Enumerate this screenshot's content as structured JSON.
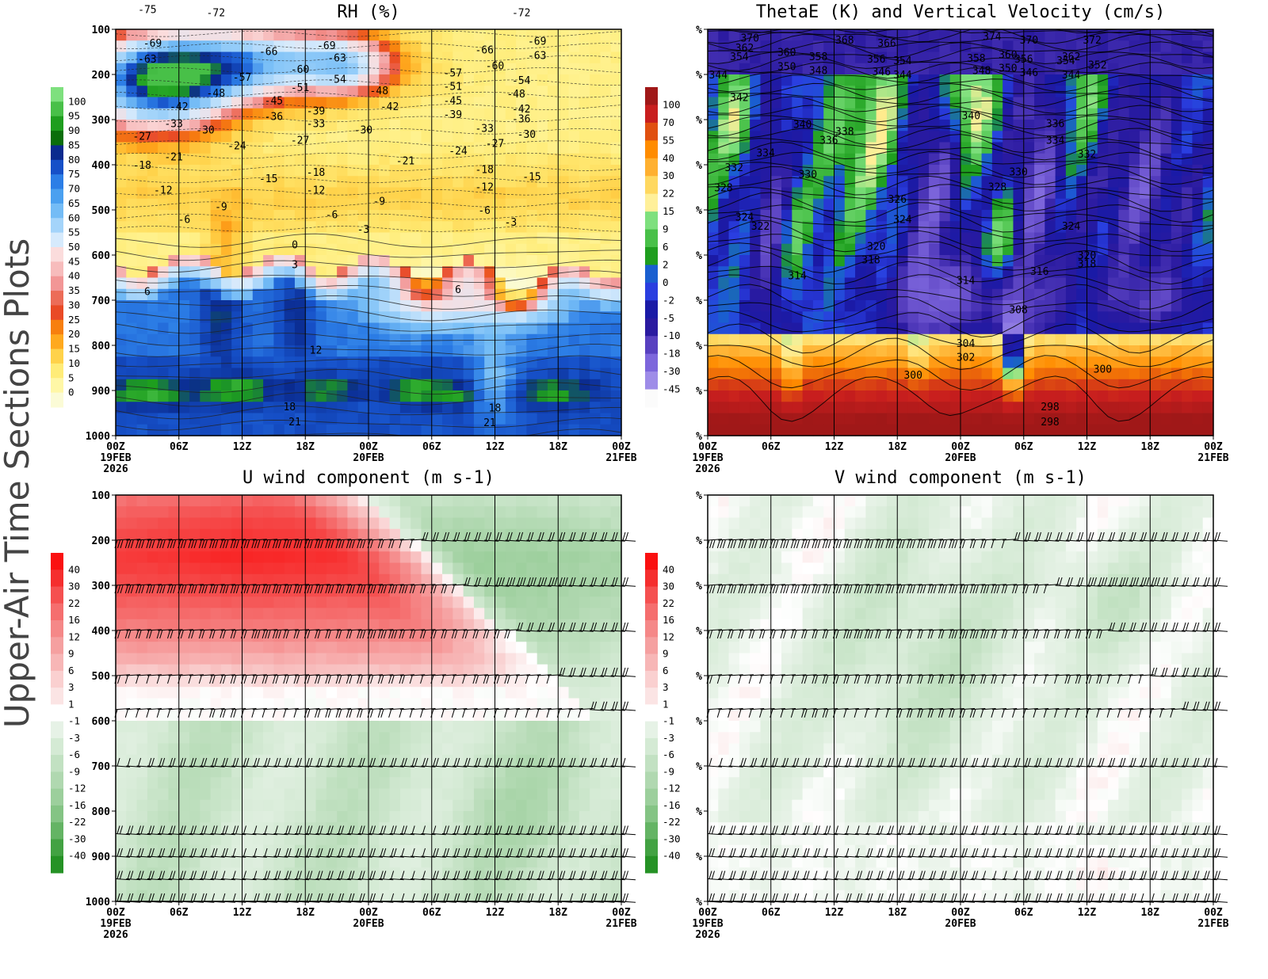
{
  "figure": {
    "side_title": "Upper-Air Time Sections Plots",
    "time_ticks": [
      "00Z",
      "06Z",
      "12Z",
      "18Z",
      "00Z",
      "06Z",
      "12Z",
      "18Z",
      "00Z"
    ],
    "date_ticks": [
      {
        "label": "19FEB",
        "year": "2026",
        "index": 0
      },
      {
        "label": "20FEB",
        "year": "",
        "index": 4
      },
      {
        "label": "21FEB",
        "year": "",
        "index": 8
      }
    ]
  },
  "chart_data": [
    {
      "id": "rh",
      "type": "heatmap",
      "title": "RH (%)",
      "y_tick_labels": [
        "100",
        "200",
        "300",
        "400",
        "500",
        "600",
        "700",
        "800",
        "900",
        "1000"
      ],
      "y_ticks": [
        100,
        200,
        300,
        400,
        500,
        600,
        700,
        800,
        900,
        1000
      ],
      "ylim": [
        100,
        1000
      ],
      "x_hours": [
        0,
        48
      ],
      "colorbar": {
        "labels": [
          "100",
          "95",
          "90",
          "85",
          "80",
          "75",
          "70",
          "65",
          "60",
          "55",
          "50",
          "45",
          "40",
          "35",
          "30",
          "25",
          "20",
          "15",
          "10",
          "5",
          "0"
        ],
        "colors": [
          "#7ee07e",
          "#48c048",
          "#1e9e1e",
          "#0a6e0a",
          "#0a2a8e",
          "#1650c8",
          "#2c7ee6",
          "#4aa0f0",
          "#74bcf6",
          "#a4d4fa",
          "#d6eafc",
          "#fbdcdc",
          "#f7bcbc",
          "#f29696",
          "#ec6c58",
          "#e94a26",
          "#f77f0e",
          "#ffa91e",
          "#ffd24a",
          "#ffec78",
          "#fff7a6",
          "#fbfbd6"
        ]
      },
      "contour_labels": [
        {
          "t": 3.0,
          "p": 55,
          "v": "-75"
        },
        {
          "t": 9.5,
          "p": 62,
          "v": "-72"
        },
        {
          "t": 38.5,
          "p": 62,
          "v": "-72"
        },
        {
          "t": 3.5,
          "p": 130,
          "v": "-69"
        },
        {
          "t": 20.0,
          "p": 135,
          "v": "-69"
        },
        {
          "t": 40.0,
          "p": 125,
          "v": "-69"
        },
        {
          "t": 3.0,
          "p": 165,
          "v": "-63"
        },
        {
          "t": 21.0,
          "p": 162,
          "v": "-63"
        },
        {
          "t": 40.0,
          "p": 157,
          "v": "-63"
        },
        {
          "t": 14.5,
          "p": 148,
          "v": "-66"
        },
        {
          "t": 35.0,
          "p": 145,
          "v": "-66"
        },
        {
          "t": 17.5,
          "p": 188,
          "v": "-60"
        },
        {
          "t": 36.0,
          "p": 180,
          "v": "-60"
        },
        {
          "t": 12.0,
          "p": 205,
          "v": "-57"
        },
        {
          "t": 32.0,
          "p": 196,
          "v": "-57"
        },
        {
          "t": 21.0,
          "p": 210,
          "v": "-54"
        },
        {
          "t": 38.5,
          "p": 212,
          "v": "-54"
        },
        {
          "t": 17.5,
          "p": 228,
          "v": "-51"
        },
        {
          "t": 32.0,
          "p": 225,
          "v": "-51"
        },
        {
          "t": 9.5,
          "p": 240,
          "v": "-48"
        },
        {
          "t": 25.0,
          "p": 235,
          "v": "-48"
        },
        {
          "t": 38.0,
          "p": 242,
          "v": "-48"
        },
        {
          "t": 15.0,
          "p": 257,
          "v": "-45"
        },
        {
          "t": 32.0,
          "p": 257,
          "v": "-45"
        },
        {
          "t": 6.0,
          "p": 270,
          "v": "-42"
        },
        {
          "t": 26.0,
          "p": 270,
          "v": "-42"
        },
        {
          "t": 38.5,
          "p": 275,
          "v": "-42"
        },
        {
          "t": 19.0,
          "p": 280,
          "v": "-39"
        },
        {
          "t": 32.0,
          "p": 288,
          "v": "-39"
        },
        {
          "t": 15.0,
          "p": 292,
          "v": "-36"
        },
        {
          "t": 38.5,
          "p": 297,
          "v": "-36"
        },
        {
          "t": 5.5,
          "p": 308,
          "v": "-33"
        },
        {
          "t": 19.0,
          "p": 308,
          "v": "-33"
        },
        {
          "t": 35.0,
          "p": 318,
          "v": "-33"
        },
        {
          "t": 8.5,
          "p": 322,
          "v": "-30"
        },
        {
          "t": 23.5,
          "p": 322,
          "v": "-30"
        },
        {
          "t": 39.0,
          "p": 332,
          "v": "-30"
        },
        {
          "t": 2.5,
          "p": 336,
          "v": "-27"
        },
        {
          "t": 17.5,
          "p": 345,
          "v": "-27"
        },
        {
          "t": 36.0,
          "p": 352,
          "v": "-27"
        },
        {
          "t": 11.5,
          "p": 357,
          "v": "-24"
        },
        {
          "t": 32.5,
          "p": 368,
          "v": "-24"
        },
        {
          "t": 5.5,
          "p": 382,
          "v": "-21"
        },
        {
          "t": 27.5,
          "p": 390,
          "v": "-21"
        },
        {
          "t": 2.5,
          "p": 400,
          "v": "-18"
        },
        {
          "t": 19.0,
          "p": 416,
          "v": "-18"
        },
        {
          "t": 35.0,
          "p": 410,
          "v": "-18"
        },
        {
          "t": 14.5,
          "p": 430,
          "v": "-15"
        },
        {
          "t": 39.5,
          "p": 425,
          "v": "-15"
        },
        {
          "t": 4.5,
          "p": 455,
          "v": "-12"
        },
        {
          "t": 19.0,
          "p": 455,
          "v": "-12"
        },
        {
          "t": 35.0,
          "p": 448,
          "v": "-12"
        },
        {
          "t": 10.0,
          "p": 492,
          "v": "-9"
        },
        {
          "t": 25.0,
          "p": 480,
          "v": "-9"
        },
        {
          "t": 6.5,
          "p": 520,
          "v": "-6"
        },
        {
          "t": 20.5,
          "p": 510,
          "v": "-6"
        },
        {
          "t": 35.0,
          "p": 500,
          "v": "-6"
        },
        {
          "t": 23.5,
          "p": 542,
          "v": "-3"
        },
        {
          "t": 37.5,
          "p": 526,
          "v": "-3"
        },
        {
          "t": 17.0,
          "p": 576,
          "v": "0"
        },
        {
          "t": 17.0,
          "p": 620,
          "v": "3"
        },
        {
          "t": 3.0,
          "p": 680,
          "v": "6"
        },
        {
          "t": 32.5,
          "p": 675,
          "v": "6"
        },
        {
          "t": 19.0,
          "p": 810,
          "v": "12"
        },
        {
          "t": 16.5,
          "p": 935,
          "v": "18"
        },
        {
          "t": 36.0,
          "p": 938,
          "v": "18"
        },
        {
          "t": 17.0,
          "p": 968,
          "v": "21"
        },
        {
          "t": 35.5,
          "p": 970,
          "v": "21"
        }
      ]
    },
    {
      "id": "thetae",
      "type": "heatmap",
      "title": "ThetaE (K) and Vertical Velocity (cm/s)",
      "y_tick_labels": [
        "%",
        "%",
        "%",
        "%",
        "%",
        "%",
        "%",
        "%",
        "%",
        "%"
      ],
      "y_ticks": [
        100,
        200,
        300,
        400,
        500,
        600,
        700,
        800,
        900,
        1000
      ],
      "ylim": [
        100,
        1000
      ],
      "x_hours": [
        0,
        48
      ],
      "colorbar": {
        "labels": [
          "100",
          "70",
          "55",
          "40",
          "30",
          "22",
          "15",
          "9",
          "6",
          "2",
          "0",
          "-2",
          "-5",
          "-10",
          "-18",
          "-30",
          "-45"
        ],
        "colors": [
          "#a01818",
          "#c81e1e",
          "#e05010",
          "#ff8c00",
          "#ffb030",
          "#ffd860",
          "#fff09a",
          "#7ee07e",
          "#48c048",
          "#1e9e1e",
          "#1a5fd0",
          "#2a3ee0",
          "#1a1aa6",
          "#2a1aa0",
          "#5840c0",
          "#7d66dc",
          "#9e8ce8",
          "#fbfbfb"
        ]
      },
      "contour_labels": [
        {
          "t": 4.0,
          "p": 118,
          "v": "370"
        },
        {
          "t": 13.0,
          "p": 123,
          "v": "368"
        },
        {
          "t": 17.0,
          "p": 130,
          "v": "366"
        },
        {
          "t": 27.0,
          "p": 115,
          "v": "374"
        },
        {
          "t": 30.5,
          "p": 123,
          "v": "370"
        },
        {
          "t": 36.5,
          "p": 123,
          "v": "372"
        },
        {
          "t": 3.5,
          "p": 140,
          "v": "362"
        },
        {
          "t": 7.5,
          "p": 150,
          "v": "360"
        },
        {
          "t": 10.5,
          "p": 160,
          "v": "358"
        },
        {
          "t": 16.0,
          "p": 165,
          "v": "356"
        },
        {
          "t": 25.5,
          "p": 163,
          "v": "358"
        },
        {
          "t": 28.5,
          "p": 155,
          "v": "360"
        },
        {
          "t": 34.5,
          "p": 160,
          "v": "362"
        },
        {
          "t": 3.0,
          "p": 160,
          "v": "354"
        },
        {
          "t": 18.5,
          "p": 168,
          "v": "354"
        },
        {
          "t": 30.0,
          "p": 165,
          "v": "356"
        },
        {
          "t": 34.0,
          "p": 168,
          "v": "354"
        },
        {
          "t": 37.0,
          "p": 178,
          "v": "352"
        },
        {
          "t": 7.5,
          "p": 182,
          "v": "350"
        },
        {
          "t": 10.5,
          "p": 190,
          "v": "348"
        },
        {
          "t": 16.5,
          "p": 193,
          "v": "346"
        },
        {
          "t": 26.0,
          "p": 190,
          "v": "348"
        },
        {
          "t": 28.5,
          "p": 185,
          "v": "350"
        },
        {
          "t": 30.5,
          "p": 195,
          "v": "346"
        },
        {
          "t": 1.0,
          "p": 200,
          "v": "344"
        },
        {
          "t": 18.5,
          "p": 200,
          "v": "344"
        },
        {
          "t": 34.5,
          "p": 200,
          "v": "344"
        },
        {
          "t": 3.0,
          "p": 250,
          "v": "342"
        },
        {
          "t": 25.0,
          "p": 290,
          "v": "340"
        },
        {
          "t": 9.0,
          "p": 310,
          "v": "340"
        },
        {
          "t": 33.0,
          "p": 308,
          "v": "336"
        },
        {
          "t": 13.0,
          "p": 325,
          "v": "338"
        },
        {
          "t": 11.5,
          "p": 345,
          "v": "336"
        },
        {
          "t": 33.0,
          "p": 345,
          "v": "334"
        },
        {
          "t": 5.5,
          "p": 373,
          "v": "334"
        },
        {
          "t": 36.0,
          "p": 375,
          "v": "332"
        },
        {
          "t": 2.5,
          "p": 405,
          "v": "332"
        },
        {
          "t": 9.5,
          "p": 420,
          "v": "330"
        },
        {
          "t": 29.5,
          "p": 415,
          "v": "330"
        },
        {
          "t": 1.5,
          "p": 450,
          "v": "328"
        },
        {
          "t": 27.5,
          "p": 448,
          "v": "328"
        },
        {
          "t": 18.0,
          "p": 475,
          "v": "326"
        },
        {
          "t": 3.5,
          "p": 515,
          "v": "324"
        },
        {
          "t": 18.5,
          "p": 520,
          "v": "324"
        },
        {
          "t": 34.5,
          "p": 535,
          "v": "324"
        },
        {
          "t": 5.0,
          "p": 535,
          "v": "322"
        },
        {
          "t": 16.0,
          "p": 580,
          "v": "320"
        },
        {
          "t": 36.0,
          "p": 600,
          "v": "320"
        },
        {
          "t": 15.5,
          "p": 610,
          "v": "318"
        },
        {
          "t": 36.0,
          "p": 618,
          "v": "318"
        },
        {
          "t": 31.5,
          "p": 635,
          "v": "316"
        },
        {
          "t": 8.5,
          "p": 645,
          "v": "314"
        },
        {
          "t": 24.5,
          "p": 655,
          "v": "314"
        },
        {
          "t": 29.5,
          "p": 720,
          "v": "308"
        },
        {
          "t": 24.5,
          "p": 795,
          "v": "304"
        },
        {
          "t": 24.5,
          "p": 825,
          "v": "302"
        },
        {
          "t": 19.5,
          "p": 865,
          "v": "300"
        },
        {
          "t": 37.5,
          "p": 852,
          "v": "300"
        },
        {
          "t": 32.5,
          "p": 935,
          "v": "298"
        },
        {
          "t": 32.5,
          "p": 968,
          "v": "298"
        }
      ]
    },
    {
      "id": "uwind",
      "type": "heatmap",
      "title": "U wind component (m s-1)",
      "y_tick_labels": [
        "100",
        "200",
        "300",
        "400",
        "500",
        "600",
        "700",
        "800",
        "900",
        "1000"
      ],
      "y_ticks": [
        100,
        200,
        300,
        400,
        500,
        600,
        700,
        800,
        900,
        1000
      ],
      "ylim": [
        100,
        1000
      ],
      "x_hours": [
        0,
        48
      ],
      "colorbar": {
        "labels": [
          "40",
          "30",
          "22",
          "16",
          "12",
          "9",
          "6",
          "3",
          "1",
          "-1",
          "-3",
          "-6",
          "-9",
          "-12",
          "-16",
          "-22",
          "-30",
          "-40"
        ],
        "colors": [
          "#fa1010",
          "#f52e2e",
          "#f55050",
          "#f56e6e",
          "#f58888",
          "#f5a0a0",
          "#f7b6b6",
          "#fad0d0",
          "#fbe4e4",
          "#ffffff",
          "#e6f2e6",
          "#d4ead4",
          "#c2e1c2",
          "#b0d8b0",
          "#9ccf9c",
          "#84c484",
          "#64b464",
          "#42a242",
          "#259225"
        ]
      },
      "barb_levels": [
        200,
        300,
        400,
        500,
        575,
        700,
        850,
        900,
        950,
        1000
      ]
    },
    {
      "id": "vwind",
      "type": "heatmap",
      "title": "V wind component (m s-1)",
      "y_tick_labels": [
        "%",
        "%",
        "%",
        "%",
        "%",
        "%",
        "%",
        "%",
        "%",
        "%"
      ],
      "y_ticks": [
        100,
        200,
        300,
        400,
        500,
        600,
        700,
        800,
        900,
        1000
      ],
      "ylim": [
        100,
        1000
      ],
      "x_hours": [
        0,
        48
      ],
      "colorbar": {
        "labels": [
          "40",
          "30",
          "22",
          "16",
          "12",
          "9",
          "6",
          "3",
          "1",
          "-1",
          "-3",
          "-6",
          "-9",
          "-12",
          "-16",
          "-22",
          "-30",
          "-40"
        ],
        "colors": [
          "#fa1010",
          "#f52e2e",
          "#f55050",
          "#f56e6e",
          "#f58888",
          "#f5a0a0",
          "#f7b6b6",
          "#fad0d0",
          "#fbe4e4",
          "#ffffff",
          "#e6f2e6",
          "#d4ead4",
          "#c2e1c2",
          "#b0d8b0",
          "#9ccf9c",
          "#84c484",
          "#64b464",
          "#42a242",
          "#259225"
        ]
      },
      "barb_levels": [
        200,
        300,
        400,
        500,
        575,
        700,
        850,
        900,
        950,
        1000
      ]
    }
  ]
}
